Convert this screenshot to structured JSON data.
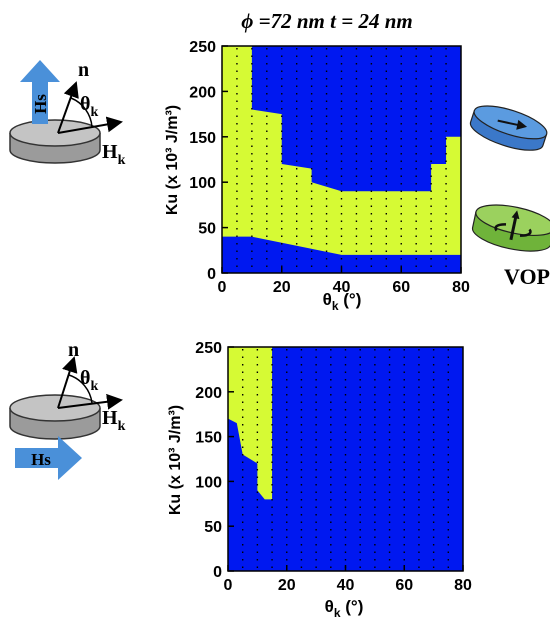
{
  "title": "ϕ =72 nm t = 24 nm",
  "colors": {
    "green": "#D6FA34",
    "blue": "#0018F0",
    "grey": "#B3B3B3",
    "arrow_blue": "#4A90D9",
    "disk_green": "#8FD14F"
  },
  "left_schematic": {
    "n_label": "n",
    "theta_label": "θ",
    "theta_sub": "k",
    "h_label": "H",
    "h_sub": "k",
    "hs_label": "Hs"
  },
  "right_schematic": {
    "vop_label": "VOP",
    "icons": [
      "in-plane-disk-icon",
      "vortex-disk-icon"
    ]
  },
  "chart_data": [
    {
      "type": "heatmap",
      "title": "ϕ =72 nm t = 24 nm",
      "xlabel": "θ",
      "xlabel_sub": "k",
      "xlabel_unit": " (°)",
      "ylabel": "Ku (x 10³ J/m³)",
      "xlim": [
        0,
        80
      ],
      "ylim": [
        0,
        250
      ],
      "xticks": [
        "0",
        "20",
        "40",
        "60",
        "80"
      ],
      "yticks": [
        "0",
        "50",
        "100",
        "150",
        "200",
        "250"
      ],
      "grid": true,
      "field_direction": "out-of-plane",
      "phases": {
        "green": "VOP (vortex out-of-plane)",
        "blue": "in-plane"
      },
      "green_region_boundary": [
        [
          0,
          0
        ],
        [
          0,
          250
        ],
        [
          10,
          250
        ],
        [
          10,
          180
        ],
        [
          20,
          175
        ],
        [
          20,
          120
        ],
        [
          30,
          115
        ],
        [
          30,
          100
        ],
        [
          40,
          90
        ],
        [
          70,
          90
        ],
        [
          70,
          120
        ],
        [
          75,
          120
        ],
        [
          75,
          150
        ],
        [
          80,
          150
        ],
        [
          80,
          20
        ],
        [
          40,
          20
        ],
        [
          10,
          40
        ],
        [
          0,
          40
        ]
      ]
    },
    {
      "type": "heatmap",
      "xlabel": "θ",
      "xlabel_sub": "k",
      "xlabel_unit": " (°)",
      "ylabel": "Ku (x 10³ J/m³)",
      "xlim": [
        0,
        80
      ],
      "ylim": [
        0,
        250
      ],
      "xticks": [
        "0",
        "20",
        "40",
        "60",
        "80"
      ],
      "yticks": [
        "0",
        "50",
        "100",
        "150",
        "200",
        "250"
      ],
      "grid": true,
      "field_direction": "in-plane",
      "green_region_boundary": [
        [
          0,
          250
        ],
        [
          0,
          170
        ],
        [
          3,
          165
        ],
        [
          5,
          130
        ],
        [
          10,
          120
        ],
        [
          10,
          90
        ],
        [
          12.5,
          80
        ],
        [
          15,
          80
        ],
        [
          15,
          250
        ]
      ]
    }
  ]
}
